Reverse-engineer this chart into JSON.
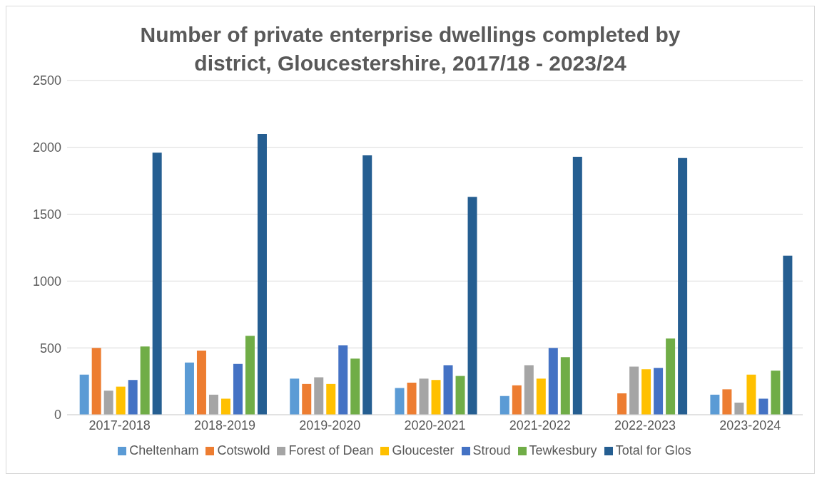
{
  "chart_data": {
    "type": "bar",
    "title": "Number of private enterprise dwellings completed by district, Gloucestershire, 2017/18 - 2023/24",
    "categories": [
      "2017-2018",
      "2018-2019",
      "2019-2020",
      "2020-2021",
      "2021-2022",
      "2022-2023",
      "2023-2024"
    ],
    "series": [
      {
        "name": "Cheltenham",
        "color": "#5b9bd5",
        "values": [
          300,
          390,
          270,
          200,
          140,
          null,
          150
        ]
      },
      {
        "name": "Cotswold",
        "color": "#ed7d31",
        "values": [
          500,
          480,
          230,
          240,
          220,
          160,
          190
        ]
      },
      {
        "name": "Forest of Dean",
        "color": "#a5a5a5",
        "values": [
          180,
          150,
          280,
          270,
          370,
          360,
          90
        ]
      },
      {
        "name": "Gloucester",
        "color": "#ffc000",
        "values": [
          210,
          120,
          230,
          260,
          270,
          340,
          300
        ]
      },
      {
        "name": "Stroud",
        "color": "#4472c4",
        "values": [
          260,
          380,
          520,
          370,
          500,
          350,
          120
        ]
      },
      {
        "name": "Tewkesbury",
        "color": "#70ad47",
        "values": [
          510,
          590,
          420,
          290,
          430,
          570,
          330
        ]
      },
      {
        "name": "Total for Glos",
        "color": "#255e91",
        "values": [
          1960,
          2100,
          1940,
          1630,
          1930,
          1920,
          1190
        ]
      }
    ],
    "ylim": [
      0,
      2500
    ],
    "yticks": [
      0,
      500,
      1000,
      1500,
      2000,
      2500
    ],
    "grid": "y",
    "legend": "bottom"
  }
}
